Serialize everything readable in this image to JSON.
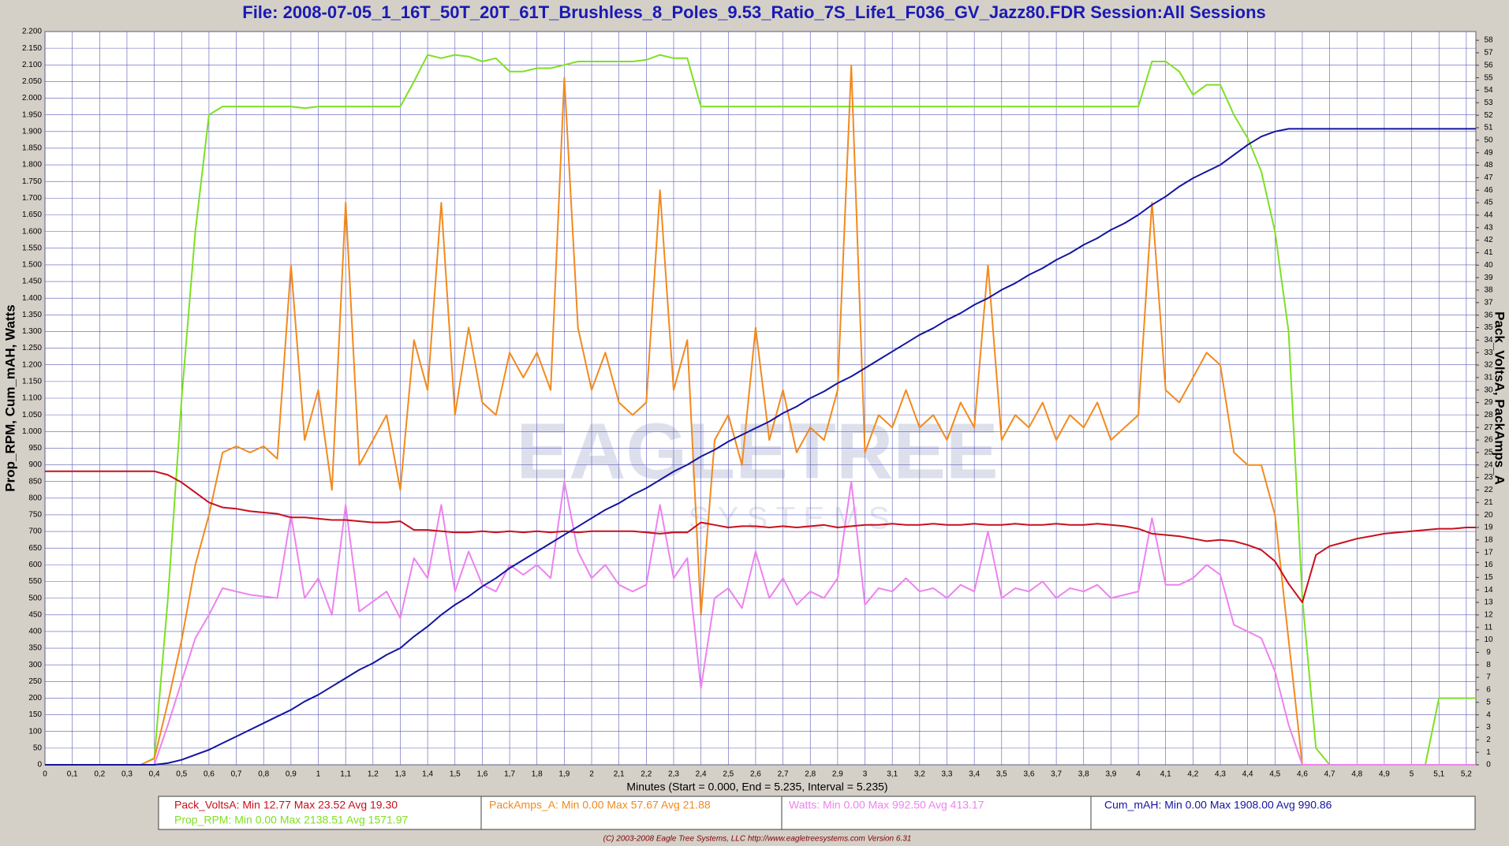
{
  "chart_data": {
    "type": "line",
    "title": "File: 2008-07-05_1_16T_50T_20T_61T_Brushless_8_Poles_9.53_Ratio_7S_Life1_F036_GV_Jazz80.FDR    Session:All Sessions",
    "x_label": "Minutes (Start = 0.000,  End = 5.235,  Interval =  5.235)",
    "y_label": "Prop_RPM, Cum_mAH, Watts",
    "y2_label": "Pack_VoltsA, PackAmps_A",
    "watermark": [
      "EAGLETREE",
      "S Y S T E M S"
    ],
    "footer": "(C) 2003-2008 Eagle Tree Systems, LLC      http://www.eagletreesystems.com      Version 6.31",
    "grid": true,
    "xlim": [
      0,
      5.235
    ],
    "ylim": [
      0,
      2200
    ],
    "y2lim": [
      0,
      58.7
    ],
    "xticks": [
      0,
      {
        "value": 0.1,
        "label": "0,1"
      },
      {
        "value": 0.2,
        "label": "0,2"
      },
      {
        "value": 0.3,
        "label": "0,3"
      },
      {
        "value": 0.4,
        "label": "0,4"
      },
      {
        "value": 0.5,
        "label": "0,5"
      },
      {
        "value": 0.6,
        "label": "0,6"
      },
      {
        "value": 0.7,
        "label": "0,7"
      },
      {
        "value": 0.8,
        "label": "0,8"
      },
      {
        "value": 0.9,
        "label": "0,9"
      },
      1,
      {
        "value": 1.1,
        "label": "1,1"
      },
      {
        "value": 1.2,
        "label": "1,2"
      },
      {
        "value": 1.3,
        "label": "1,3"
      },
      {
        "value": 1.4,
        "label": "1,4"
      },
      {
        "value": 1.5,
        "label": "1,5"
      },
      {
        "value": 1.6,
        "label": "1,6"
      },
      {
        "value": 1.7,
        "label": "1,7"
      },
      {
        "value": 1.8,
        "label": "1,8"
      },
      {
        "value": 1.9,
        "label": "1,9"
      },
      2,
      {
        "value": 2.1,
        "label": "2,1"
      },
      {
        "value": 2.2,
        "label": "2,2"
      },
      {
        "value": 2.3,
        "label": "2,3"
      },
      {
        "value": 2.4,
        "label": "2,4"
      },
      {
        "value": 2.5,
        "label": "2,5"
      },
      {
        "value": 2.6,
        "label": "2,6"
      },
      {
        "value": 2.7,
        "label": "2,7"
      },
      {
        "value": 2.8,
        "label": "2,8"
      },
      {
        "value": 2.9,
        "label": "2,9"
      },
      3,
      {
        "value": 3.1,
        "label": "3,1"
      },
      {
        "value": 3.2,
        "label": "3,2"
      },
      {
        "value": 3.3,
        "label": "3,3"
      },
      {
        "value": 3.4,
        "label": "3,4"
      },
      {
        "value": 3.5,
        "label": "3,5"
      },
      {
        "value": 3.6,
        "label": "3,6"
      },
      {
        "value": 3.7,
        "label": "3,7"
      },
      {
        "value": 3.8,
        "label": "3,8"
      },
      {
        "value": 3.9,
        "label": "3,9"
      },
      4,
      {
        "value": 4.1,
        "label": "4,1"
      },
      {
        "value": 4.2,
        "label": "4,2"
      },
      {
        "value": 4.3,
        "label": "4,3"
      },
      {
        "value": 4.4,
        "label": "4,4"
      },
      {
        "value": 4.5,
        "label": "4,5"
      },
      {
        "value": 4.6,
        "label": "4,6"
      },
      {
        "value": 4.7,
        "label": "4,7"
      },
      {
        "value": 4.8,
        "label": "4,8"
      },
      {
        "value": 4.9,
        "label": "4,9"
      },
      5,
      {
        "value": 5.1,
        "label": "5,1"
      },
      {
        "value": 5.2,
        "label": "5,2"
      }
    ],
    "yticks": [
      0,
      50,
      100,
      150,
      200,
      250,
      300,
      350,
      400,
      450,
      500,
      550,
      600,
      650,
      700,
      750,
      800,
      850,
      900,
      950,
      {
        "value": 1000,
        "label": "1.000"
      },
      {
        "value": 1050,
        "label": "1.050"
      },
      {
        "value": 1100,
        "label": "1.100"
      },
      {
        "value": 1150,
        "label": "1.150"
      },
      {
        "value": 1200,
        "label": "1.200"
      },
      {
        "value": 1250,
        "label": "1.250"
      },
      {
        "value": 1300,
        "label": "1.300"
      },
      {
        "value": 1350,
        "label": "1.350"
      },
      {
        "value": 1400,
        "label": "1.400"
      },
      {
        "value": 1450,
        "label": "1.450"
      },
      {
        "value": 1500,
        "label": "1.500"
      },
      {
        "value": 1550,
        "label": "1.550"
      },
      {
        "value": 1600,
        "label": "1.600"
      },
      {
        "value": 1650,
        "label": "1.650"
      },
      {
        "value": 1700,
        "label": "1.700"
      },
      {
        "value": 1750,
        "label": "1.750"
      },
      {
        "value": 1800,
        "label": "1.800"
      },
      {
        "value": 1850,
        "label": "1.850"
      },
      {
        "value": 1900,
        "label": "1.900"
      },
      {
        "value": 1950,
        "label": "1.950"
      },
      {
        "value": 2000,
        "label": "2.000"
      },
      {
        "value": 2050,
        "label": "2.050"
      },
      {
        "value": 2100,
        "label": "2.100"
      },
      {
        "value": 2150,
        "label": "2.150"
      },
      {
        "value": 2200,
        "label": "2.200"
      }
    ],
    "y2ticks": [
      0,
      1,
      2,
      3,
      4,
      5,
      6,
      7,
      8,
      9,
      10,
      11,
      12,
      13,
      14,
      15,
      16,
      17,
      18,
      19,
      20,
      21,
      22,
      23,
      24,
      25,
      26,
      27,
      28,
      29,
      30,
      31,
      32,
      33,
      34,
      35,
      36,
      37,
      38,
      39,
      40,
      41,
      42,
      43,
      44,
      45,
      46,
      47,
      48,
      49,
      50,
      51,
      52,
      53,
      54,
      55,
      56,
      57,
      58
    ],
    "x": [
      0,
      0.05,
      0.1,
      0.15,
      0.2,
      0.25,
      0.3,
      0.35,
      0.4,
      0.45,
      0.5,
      0.55,
      0.6,
      0.65,
      0.7,
      0.75,
      0.8,
      0.85,
      0.9,
      0.95,
      1,
      1.05,
      1.1,
      1.15,
      1.2,
      1.25,
      1.3,
      1.35,
      1.4,
      1.45,
      1.5,
      1.55,
      1.6,
      1.65,
      1.7,
      1.75,
      1.8,
      1.85,
      1.9,
      1.95,
      2,
      2.05,
      2.1,
      2.15,
      2.2,
      2.25,
      2.3,
      2.35,
      2.4,
      2.45,
      2.5,
      2.55,
      2.6,
      2.65,
      2.7,
      2.75,
      2.8,
      2.85,
      2.9,
      2.95,
      3,
      3.05,
      3.1,
      3.15,
      3.2,
      3.25,
      3.3,
      3.35,
      3.4,
      3.45,
      3.5,
      3.55,
      3.6,
      3.65,
      3.7,
      3.75,
      3.8,
      3.85,
      3.9,
      3.95,
      4,
      4.05,
      4.1,
      4.15,
      4.2,
      4.25,
      4.3,
      4.35,
      4.4,
      4.45,
      4.5,
      4.55,
      4.6,
      4.65,
      4.7,
      4.75,
      4.8,
      4.85,
      4.9,
      4.95,
      5,
      5.05,
      5.1,
      5.15,
      5.2,
      5.235
    ],
    "series": [
      {
        "name": "Pack_VoltsA",
        "legend": "Pack_VoltsA:  Min 12.77    Max 23.52    Avg 19.30",
        "color": "#c8101c",
        "axis": "y2",
        "values": [
          23.5,
          23.5,
          23.5,
          23.5,
          23.5,
          23.5,
          23.5,
          23.5,
          23.5,
          23.2,
          22.6,
          21.8,
          21.0,
          20.6,
          20.5,
          20.3,
          20.2,
          20.1,
          19.8,
          19.8,
          19.7,
          19.6,
          19.6,
          19.5,
          19.4,
          19.4,
          19.5,
          18.8,
          18.8,
          18.7,
          18.6,
          18.6,
          18.7,
          18.6,
          18.7,
          18.6,
          18.7,
          18.6,
          18.7,
          18.6,
          18.7,
          18.7,
          18.7,
          18.7,
          18.6,
          18.5,
          18.6,
          18.6,
          19.4,
          19.2,
          19.0,
          19.1,
          19.1,
          19.0,
          19.1,
          19.0,
          19.1,
          19.2,
          19.0,
          19.1,
          19.2,
          19.2,
          19.3,
          19.2,
          19.2,
          19.3,
          19.2,
          19.2,
          19.3,
          19.2,
          19.2,
          19.3,
          19.2,
          19.2,
          19.3,
          19.2,
          19.2,
          19.3,
          19.2,
          19.1,
          18.9,
          18.5,
          18.4,
          18.3,
          18.1,
          17.9,
          18.0,
          17.9,
          17.6,
          17.2,
          16.3,
          14.5,
          13.0,
          16.8,
          17.5,
          17.8,
          18.1,
          18.3,
          18.5,
          18.6,
          18.7,
          18.8,
          18.9,
          18.9,
          19.0,
          19.0
        ]
      },
      {
        "name": "Prop_RPM",
        "legend": "Prop_RPM:  Min 0.00    Max 2138.51    Avg 1571.97",
        "color": "#7ee023",
        "values": [
          0,
          0,
          0,
          0,
          0,
          0,
          0,
          0,
          20,
          500,
          1100,
          1600,
          1950,
          1975,
          1975,
          1975,
          1975,
          1975,
          1975,
          1970,
          1975,
          1975,
          1975,
          1975,
          1975,
          1975,
          1975,
          2050,
          2130,
          2120,
          2130,
          2125,
          2110,
          2120,
          2080,
          2080,
          2090,
          2090,
          2100,
          2110,
          2110,
          2110,
          2110,
          2110,
          2115,
          2130,
          2120,
          2120,
          1975,
          1975,
          1975,
          1975,
          1975,
          1975,
          1975,
          1975,
          1975,
          1975,
          1975,
          1975,
          1975,
          1975,
          1975,
          1975,
          1975,
          1975,
          1975,
          1975,
          1975,
          1975,
          1975,
          1975,
          1975,
          1975,
          1975,
          1975,
          1975,
          1975,
          1975,
          1975,
          1975,
          2110,
          2110,
          2080,
          2010,
          2040,
          2040,
          1950,
          1880,
          1780,
          1600,
          1300,
          500,
          50,
          0,
          0,
          0,
          0,
          0,
          0,
          0,
          0,
          200,
          200,
          200,
          200
        ]
      },
      {
        "name": "PackAmps_A",
        "legend": "PackAmps_A:  Min 0.00    Max 57.67    Avg 21.88",
        "color": "#f28a1e",
        "axis": "y2",
        "values": [
          0,
          0,
          0,
          0,
          0,
          0,
          0,
          0,
          0.5,
          5,
          10,
          16,
          20,
          25,
          25.5,
          25,
          25.5,
          24.5,
          40,
          26,
          30,
          22,
          45,
          24,
          26,
          28,
          22,
          34,
          30,
          45,
          28,
          35,
          29,
          28,
          33,
          31,
          33,
          30,
          55,
          35,
          30,
          33,
          29,
          28,
          29,
          46,
          30,
          34,
          12,
          26,
          28,
          24,
          35,
          26,
          30,
          25,
          27,
          26,
          30,
          56,
          25,
          28,
          27,
          30,
          27,
          28,
          26,
          29,
          27,
          40,
          26,
          28,
          27,
          29,
          26,
          28,
          27,
          29,
          26,
          27,
          28,
          45,
          30,
          29,
          31,
          33,
          32,
          25,
          24,
          24,
          20,
          10,
          0,
          0,
          0,
          0,
          0,
          0,
          0,
          0,
          0,
          0,
          0,
          0,
          0,
          0
        ]
      },
      {
        "name": "Watts",
        "legend": "Watts:  Min 0.00    Max 992.50    Avg 413.17",
        "color": "#ee82ee",
        "values": [
          0,
          0,
          0,
          0,
          0,
          0,
          0,
          0,
          0,
          120,
          250,
          380,
          450,
          530,
          520,
          510,
          505,
          500,
          750,
          500,
          560,
          450,
          780,
          460,
          490,
          520,
          440,
          620,
          560,
          780,
          520,
          640,
          540,
          520,
          600,
          570,
          600,
          560,
          850,
          640,
          560,
          600,
          540,
          520,
          540,
          780,
          560,
          620,
          230,
          500,
          530,
          470,
          640,
          500,
          560,
          480,
          520,
          500,
          560,
          850,
          480,
          530,
          520,
          560,
          520,
          530,
          500,
          540,
          520,
          700,
          500,
          530,
          520,
          550,
          500,
          530,
          520,
          540,
          500,
          510,
          520,
          740,
          540,
          540,
          560,
          600,
          570,
          420,
          400,
          380,
          280,
          120,
          0,
          0,
          0,
          0,
          0,
          0,
          0,
          0,
          0,
          0,
          0,
          0,
          0,
          0
        ]
      },
      {
        "name": "Cum_mAH",
        "legend": "Cum_mAH:  Min 0.00    Max 1908.00    Avg 990.86",
        "color": "#1414a0",
        "values": [
          0,
          0,
          0,
          0,
          0,
          0,
          0,
          0,
          0,
          5,
          15,
          30,
          45,
          65,
          85,
          105,
          125,
          145,
          165,
          190,
          210,
          235,
          260,
          285,
          305,
          330,
          350,
          385,
          415,
          450,
          480,
          505,
          535,
          560,
          590,
          615,
          640,
          665,
          690,
          715,
          740,
          765,
          785,
          810,
          830,
          855,
          880,
          900,
          925,
          945,
          970,
          990,
          1010,
          1030,
          1055,
          1075,
          1100,
          1120,
          1145,
          1165,
          1190,
          1215,
          1240,
          1265,
          1290,
          1310,
          1335,
          1355,
          1380,
          1400,
          1425,
          1445,
          1470,
          1490,
          1515,
          1535,
          1560,
          1580,
          1605,
          1625,
          1650,
          1680,
          1705,
          1735,
          1760,
          1780,
          1800,
          1830,
          1860,
          1885,
          1900,
          1908,
          1908,
          1908,
          1908,
          1908,
          1908,
          1908,
          1908,
          1908,
          1908,
          1908,
          1908,
          1908,
          1908,
          1908
        ]
      }
    ]
  }
}
